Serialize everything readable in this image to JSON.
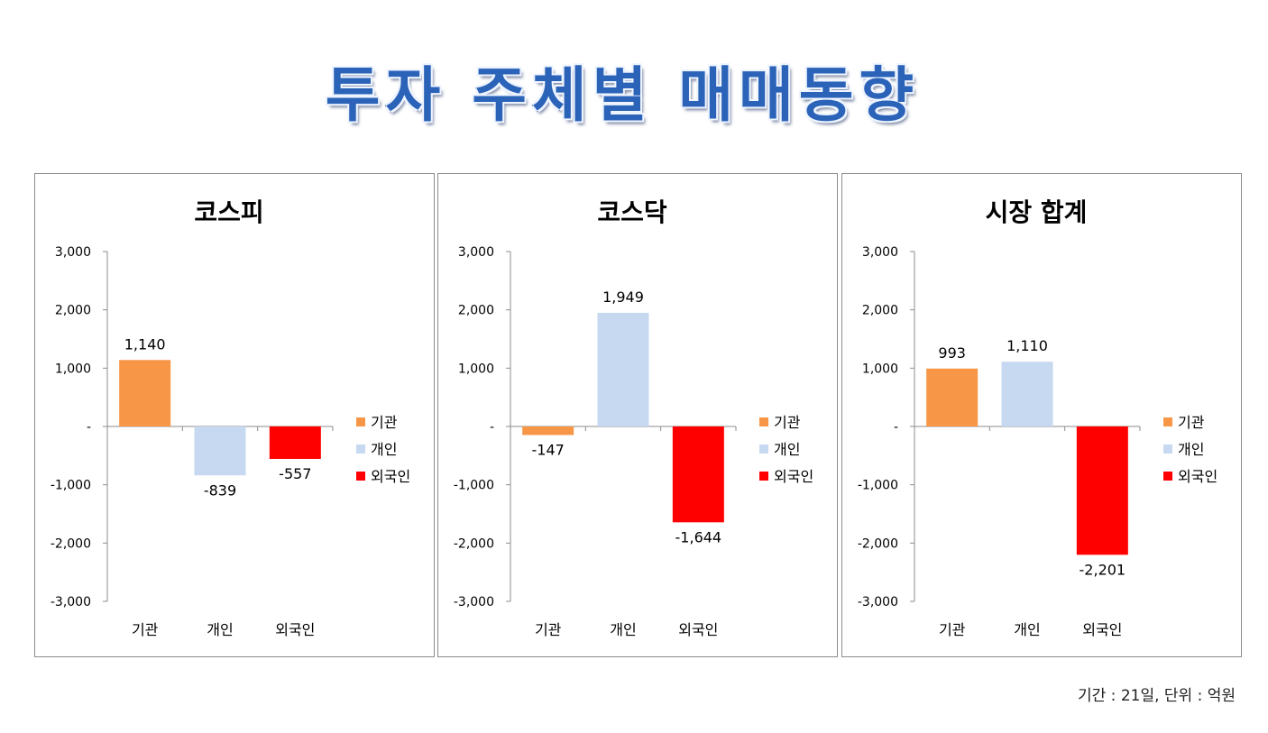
{
  "title": "투자 주체별 매매동향",
  "footnote": "기간 : 21일, 단위 : 억원",
  "colors": {
    "기관": "#f79646",
    "개인": "#c6d9f1",
    "외국인": "#ff0000"
  },
  "chart_data": [
    {
      "type": "bar",
      "title": "코스피",
      "categories": [
        "기관",
        "개인",
        "외국인"
      ],
      "values": [
        1140,
        -839,
        -557
      ],
      "data_labels": [
        "1,140",
        "-839",
        "-557"
      ],
      "yticks": [
        "3,000",
        "2,000",
        "1,000",
        "-",
        "-1,000",
        "-2,000",
        "-3,000"
      ],
      "ylim": [
        -3000,
        3000
      ],
      "legend": [
        "기관",
        "개인",
        "외국인"
      ],
      "legend_position": "right",
      "grid": false
    },
    {
      "type": "bar",
      "title": "코스닥",
      "categories": [
        "기관",
        "개인",
        "외국인"
      ],
      "values": [
        -147,
        1949,
        -1644
      ],
      "data_labels": [
        "-147",
        "1,949",
        "-1,644"
      ],
      "yticks": [
        "3,000",
        "2,000",
        "1,000",
        "-",
        "-1,000",
        "-2,000",
        "-3,000"
      ],
      "ylim": [
        -3000,
        3000
      ],
      "legend": [
        "기관",
        "개인",
        "외국인"
      ],
      "legend_position": "right",
      "grid": false
    },
    {
      "type": "bar",
      "title": "시장 합계",
      "categories": [
        "기관",
        "개인",
        "외국인"
      ],
      "values": [
        993,
        1110,
        -2201
      ],
      "data_labels": [
        "993",
        "1,110",
        "-2,201"
      ],
      "yticks": [
        "3,000",
        "2,000",
        "1,000",
        "-",
        "-1,000",
        "-2,000",
        "-3,000"
      ],
      "ylim": [
        -3000,
        3000
      ],
      "legend": [
        "기관",
        "개인",
        "외국인"
      ],
      "legend_position": "right",
      "grid": false
    }
  ]
}
